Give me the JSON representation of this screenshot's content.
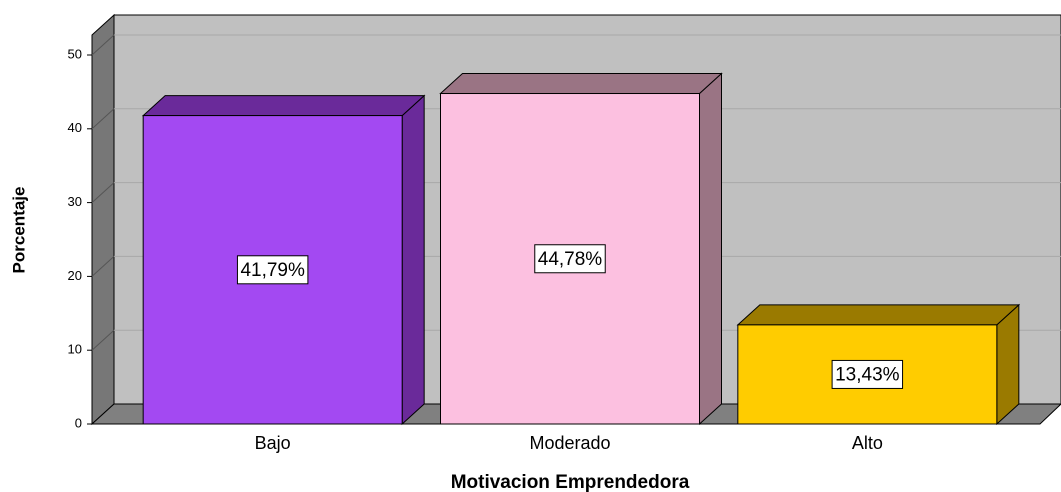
{
  "chart_data": {
    "type": "bar3d",
    "categories": [
      "Bajo",
      "Moderado",
      "Alto"
    ],
    "values": [
      41.79,
      44.78,
      13.43
    ],
    "value_labels": [
      "41,79%",
      "44,78%",
      "13,43%"
    ],
    "colors": [
      "#a349f2",
      "#fcc0e0",
      "#ffcc00"
    ],
    "side_colors": [
      "#6a2a9a",
      "#9a7484",
      "#9a7a00"
    ],
    "xlabel": "Motivacion Emprendedora",
    "ylabel": "Porcentaje",
    "ylim": [
      0,
      50
    ],
    "yticks": [
      0,
      10,
      20,
      30,
      40,
      50
    ],
    "grid": true
  }
}
